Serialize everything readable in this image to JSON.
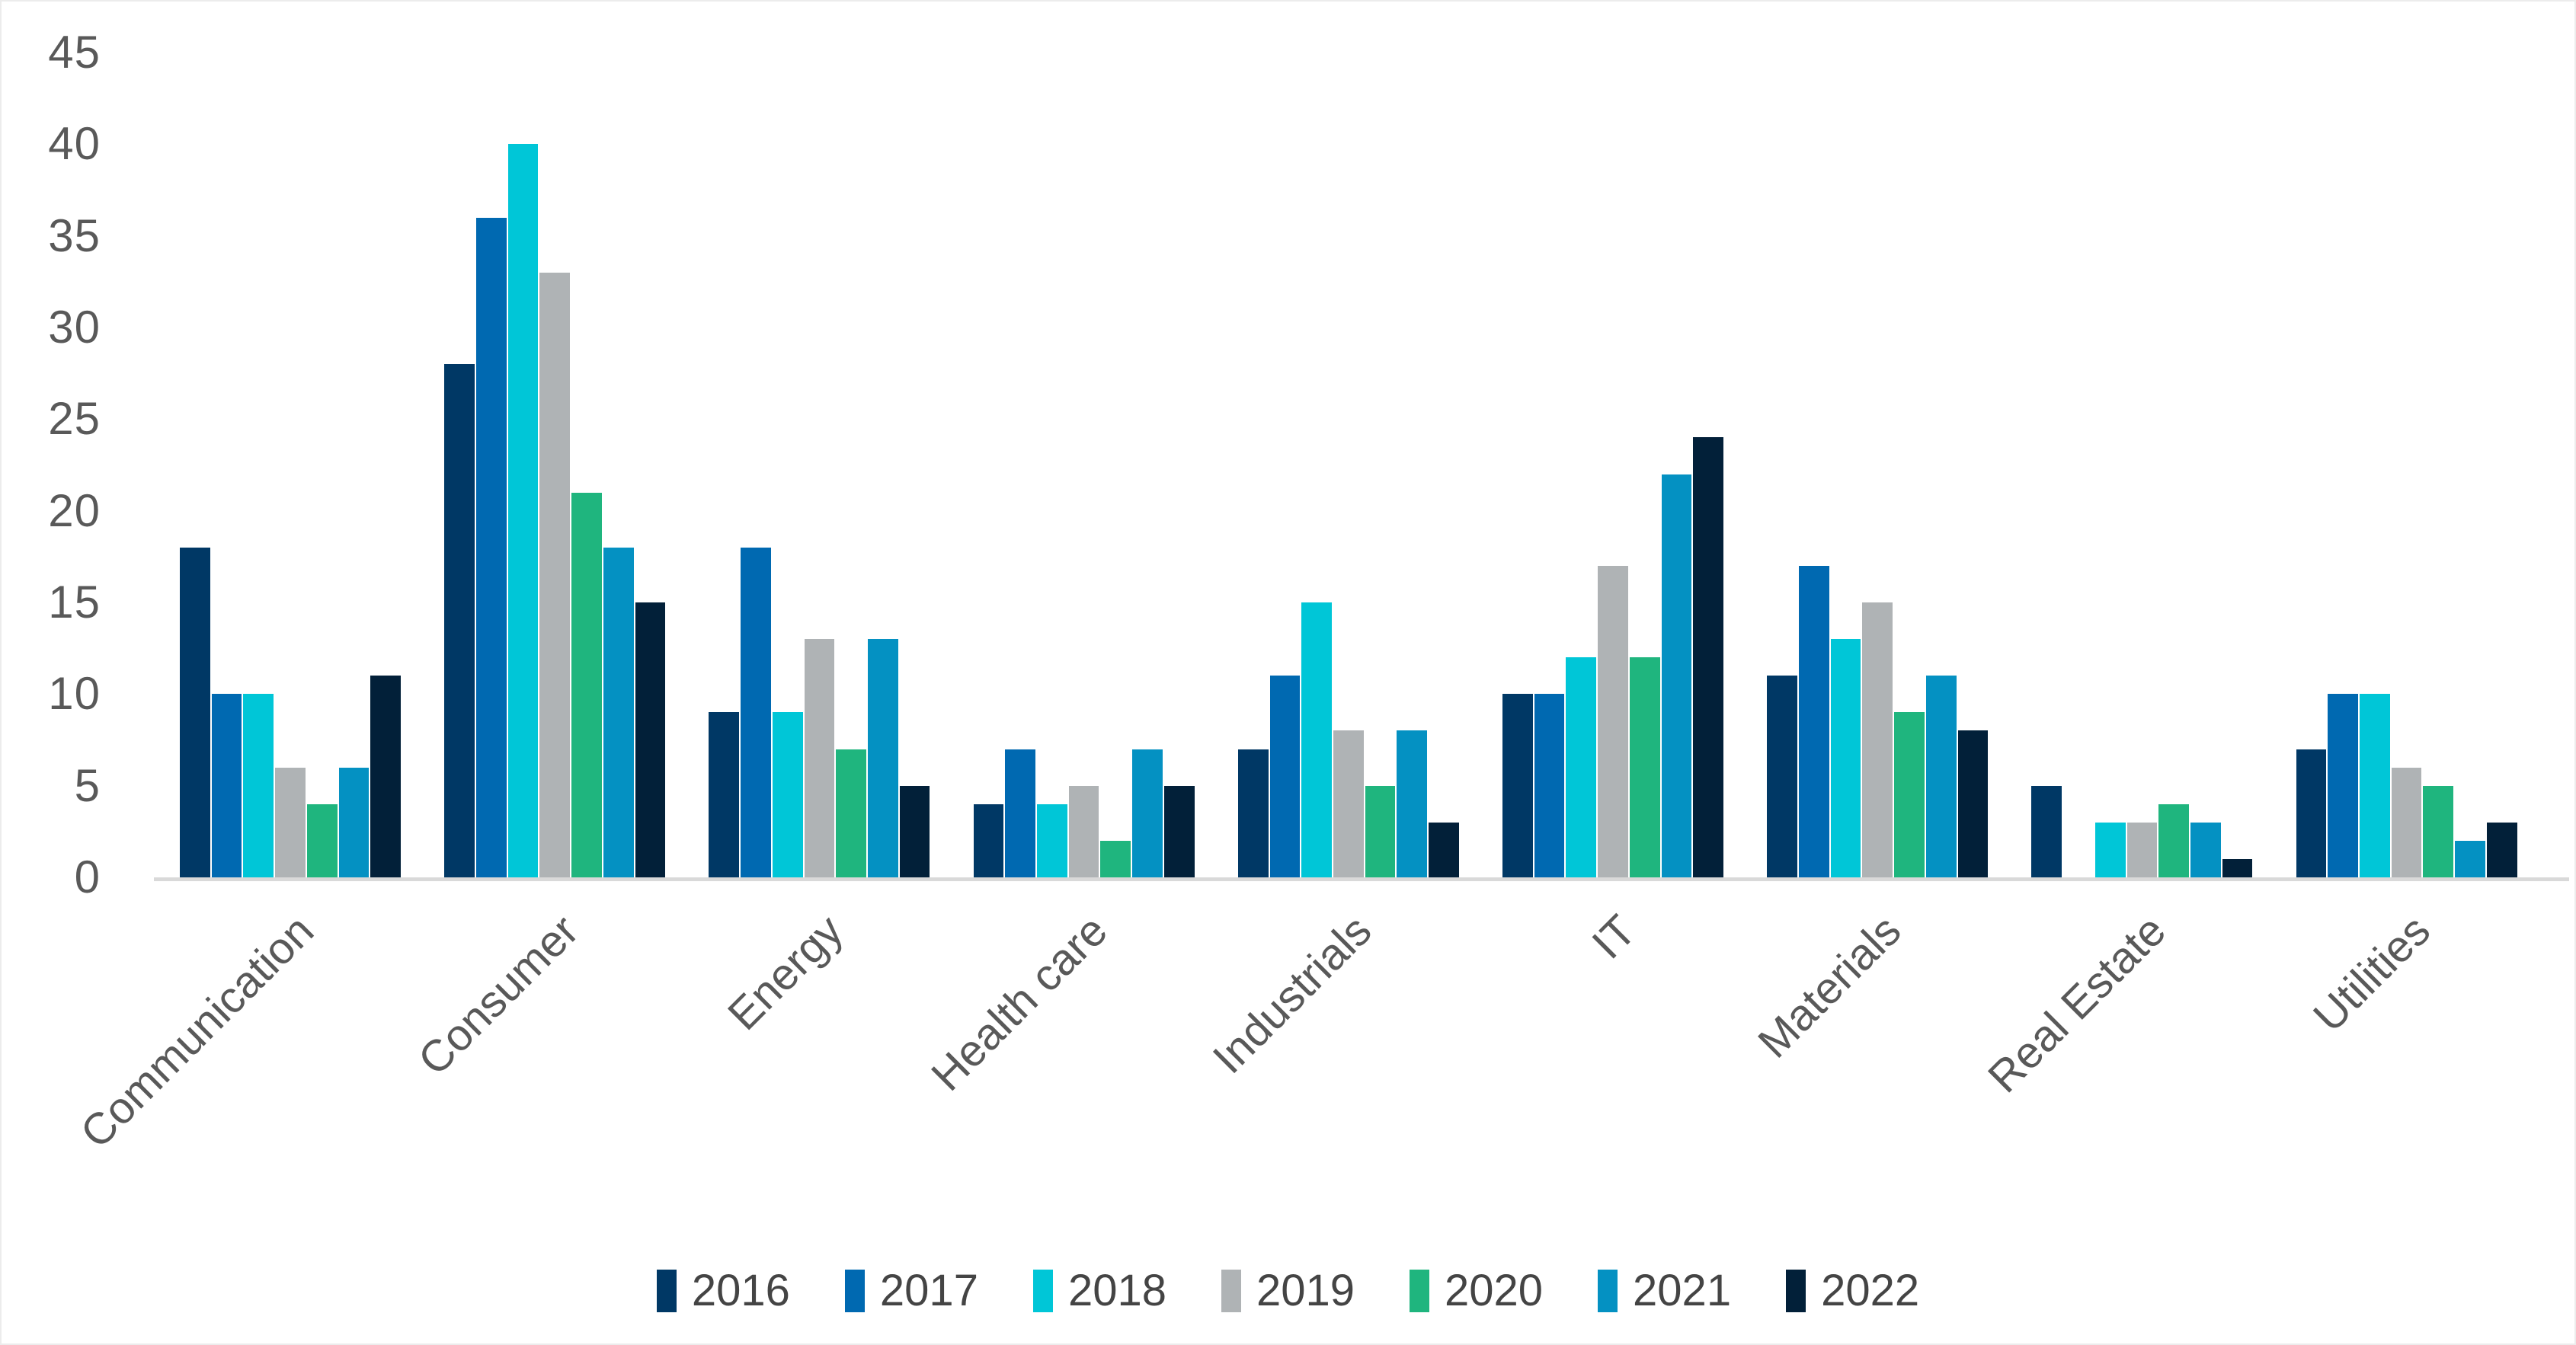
{
  "chart_data": {
    "type": "bar",
    "title": "",
    "xlabel": "",
    "ylabel": "",
    "grid": false,
    "legend_position": "bottom",
    "ylim": [
      0,
      45
    ],
    "y_ticks": [
      0,
      5,
      10,
      15,
      20,
      25,
      30,
      35,
      40,
      45
    ],
    "categories": [
      "Communication",
      "Consumer",
      "Energy",
      "Health care",
      "Industrials",
      "IT",
      "Materials",
      "Real Estate",
      "Utilities"
    ],
    "series": [
      {
        "name": "2016",
        "color": "#003865",
        "values": [
          18,
          28,
          9,
          4,
          7,
          10,
          11,
          5,
          7
        ]
      },
      {
        "name": "2017",
        "color": "#0069B1",
        "values": [
          10,
          36,
          18,
          7,
          11,
          10,
          17,
          0,
          10
        ]
      },
      {
        "name": "2018",
        "color": "#00C6D7",
        "values": [
          10,
          40,
          9,
          4,
          15,
          12,
          13,
          3,
          10
        ]
      },
      {
        "name": "2019",
        "color": "#AFB3B5",
        "values": [
          6,
          33,
          13,
          5,
          8,
          17,
          15,
          3,
          6
        ]
      },
      {
        "name": "2020",
        "color": "#1FB57E",
        "values": [
          4,
          21,
          7,
          2,
          5,
          12,
          9,
          4,
          5
        ]
      },
      {
        "name": "2021",
        "color": "#0491C2",
        "values": [
          6,
          18,
          13,
          7,
          8,
          22,
          11,
          3,
          2
        ]
      },
      {
        "name": "2022",
        "color": "#022039",
        "values": [
          11,
          15,
          5,
          5,
          3,
          24,
          8,
          1,
          3
        ]
      }
    ],
    "axis_line_color": "#D9D9D9",
    "tick_label_color": "#595959",
    "legend_text_color": "#444444",
    "background": "#FFFFFF"
  }
}
